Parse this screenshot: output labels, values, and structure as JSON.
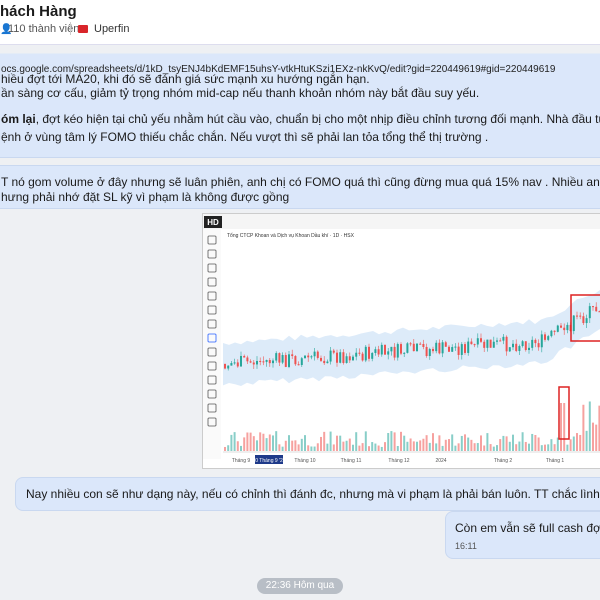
{
  "header": {
    "title": "hách Hàng",
    "members": "110 thành viên",
    "tag": "Uperfin"
  },
  "messages": [
    {
      "link": "ocs.google.com/spreadsheets/d/1kD_tsyENJ4bKdEMF15uhsY-vtkHtuKSzi1EXz-nkKvQ/edit?gid=220449619#gid=220449619",
      "cut_line": "hiều đợt tới MA20, khi đó sẽ đánh giá sức mạnh xu hướng ngắn hạn.",
      "line1": "ần sàng cơ cấu, giảm tỷ trọng nhóm mid-cap nếu thanh khoản nhóm này bắt đầu suy yếu.",
      "bold": "óm lại",
      "line2": ", đợt kéo hiện tại chủ yếu nhằm hút cầu vào, chuẩn bị cho một nhịp điều chỉnh tương đối mạnh. Nhà đầu tư nên kiên nhẫn chờ",
      "line3": "ệnh ở vùng tâm lý FOMO thiếu chắc chắn. Nếu vượt thì sẽ phải lan tỏa tổng thể thị trường ."
    },
    {
      "line1": "T nó gom volume ở đây nhưng sẽ luân phiên, anh chị có FOMO quá thì cũng đừng mua quá 15% nav . Nhiều anh chị em thấy vẫn FOMO",
      "line2": "hưng phải nhớ đặt SL kỹ vì phạm là không được gồng"
    },
    {
      "line1": "Nay nhiều con sẽ như dạng này, nếu có chỉnh thì đánh đc, nhưng mà vi phạm là phải bán luôn. TT chắc lình xình để bọn break ho"
    },
    {
      "line1": "Còn em vẫn sẽ full cash đợi cho",
      "time": "16:11"
    }
  ],
  "chart_image": {
    "badge": "HD",
    "title": "Tổng CTCP Khoan và Dịch vụ Khoan Dầu khí · 1D · HSX",
    "xlabels": [
      "Tháng 9",
      "10 Tháng 9 '23",
      "Tháng 10",
      "Tháng 11",
      "Tháng 12",
      "2024",
      "Tháng 2",
      "Tháng 1"
    ]
  },
  "divider": "22:36 Hôm qua"
}
